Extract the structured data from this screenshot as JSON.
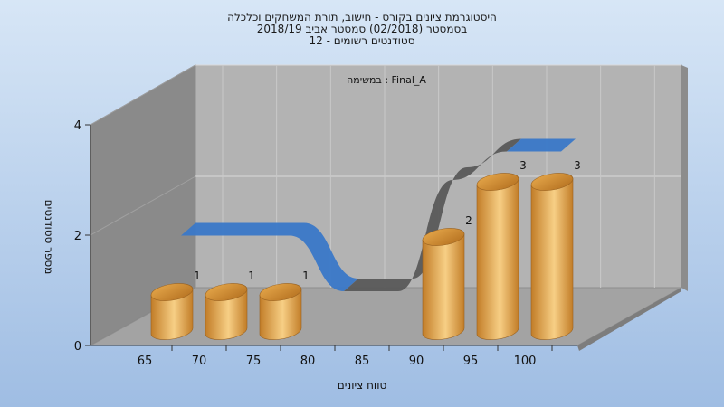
{
  "chart_data": {
    "type": "bar",
    "title_lines": [
      "היסטוגרמת ציונים בקורס - חישוב, תורת המשחקים וכלכלה",
      "בסמסטר  (02/2018)  סמסטר אביב 2018/19",
      "סטודנטים רשומים - 12"
    ],
    "annotation": "במשימה : Final_A",
    "categories": [
      "65",
      "70",
      "75",
      "80",
      "85",
      "90",
      "95",
      "100"
    ],
    "values": [
      1,
      1,
      1,
      0,
      0,
      2,
      3,
      3
    ],
    "xlabel": "טווח ציונים",
    "ylabel": "מספר סטודנטים",
    "y_ticks": [
      "0",
      "2",
      "4"
    ],
    "ylim": [
      0,
      4
    ],
    "colors": {
      "bar_light": "#f7cf85",
      "bar_dark": "#c27d28",
      "curve_blue": "#3a78c8",
      "curve_gray": "#5a5a5a",
      "back_wall": "#b3b3b3",
      "side_wall": "#8a8a8a",
      "floor": "#a3a3a3",
      "bg_top": "#d7e6f6",
      "bg_bottom": "#9fbde3"
    }
  }
}
